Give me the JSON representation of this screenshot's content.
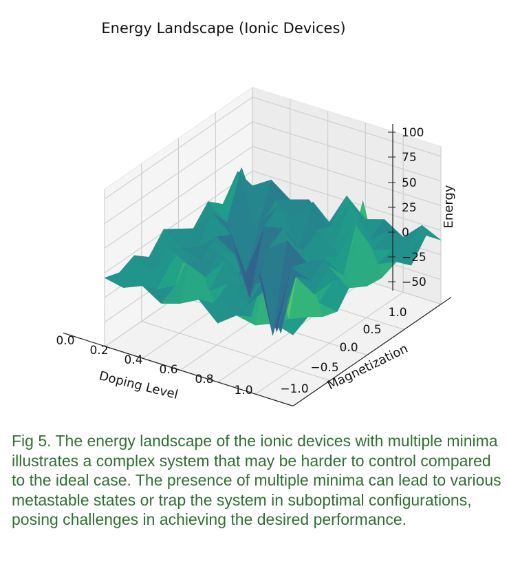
{
  "chart_data": {
    "type": "surface3d",
    "title": "Energy Landscape (Ionic Devices)",
    "xlabel": "Doping Level",
    "ylabel": "Magnetization",
    "zlabel": "Energy",
    "xlim": [
      0.0,
      1.0
    ],
    "ylim": [
      -1.0,
      1.0
    ],
    "zlim": [
      -50,
      100
    ],
    "x_ticks": [
      "0.0",
      "0.2",
      "0.4",
      "0.6",
      "0.8",
      "1.0"
    ],
    "y_ticks": [
      "−1.0",
      "−0.5",
      "0.0",
      "0.5",
      "1.0"
    ],
    "z_ticks": [
      "100",
      "75",
      "50",
      "25",
      "0",
      "−25",
      "−50"
    ],
    "x_values": [
      0.0,
      0.1,
      0.2,
      0.3,
      0.4,
      0.5,
      0.6,
      0.7,
      0.8,
      0.9,
      1.0
    ],
    "y_values": [
      -1.0,
      -0.8,
      -0.6,
      -0.4,
      -0.2,
      0.0,
      0.2,
      0.4,
      0.6,
      0.8,
      1.0
    ],
    "z_values": [
      [
        10,
        22,
        8,
        14,
        -5,
        30,
        12,
        18,
        6,
        24,
        15
      ],
      [
        35,
        -20,
        18,
        5,
        28,
        10,
        40,
        8,
        22,
        12,
        30
      ],
      [
        12,
        55,
        6,
        30,
        -10,
        16,
        8,
        35,
        14,
        20,
        10
      ],
      [
        25,
        10,
        -35,
        18,
        22,
        5,
        30,
        12,
        60,
        16,
        24
      ],
      [
        8,
        30,
        14,
        -45,
        12,
        26,
        10,
        20,
        8,
        90,
        18
      ],
      [
        18,
        6,
        22,
        10,
        40,
        -60,
        15,
        8,
        28,
        12,
        20
      ],
      [
        28,
        14,
        8,
        24,
        6,
        18,
        -40,
        22,
        10,
        30,
        35
      ],
      [
        10,
        26,
        16,
        8,
        30,
        12,
        20,
        -25,
        70,
        18,
        15
      ],
      [
        22,
        12,
        28,
        60,
        10,
        24,
        8,
        30,
        16,
        95,
        20
      ],
      [
        15,
        30,
        10,
        20,
        70,
        14,
        26,
        12,
        85,
        22,
        30
      ],
      [
        20,
        16,
        24,
        12,
        18,
        28,
        10,
        24,
        20,
        28,
        22
      ]
    ],
    "colormap": "viridis",
    "grid": true
  },
  "caption": "Fig 5. The energy landscape of the ionic devices with multiple minima illustrates a complex system that may be harder to control compared to the ideal case. The presence of multiple minima can lead to various metastable states or trap the system in suboptimal configurations, posing challenges in achieving the desired performance."
}
